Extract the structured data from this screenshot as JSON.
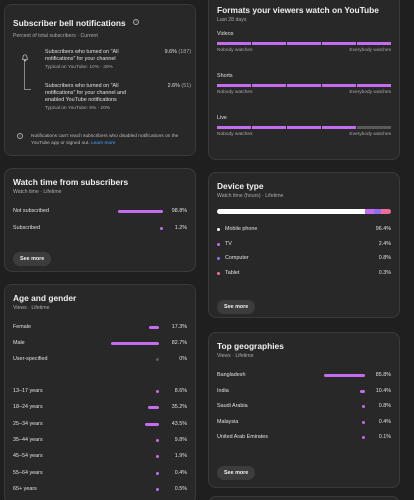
{
  "bell": {
    "title": "Subscriber bell notifications",
    "subtitle": "Percent of total subscribers · Current",
    "rows": [
      {
        "label": "Subscribers who turned on \"All notifications\" for your channel",
        "pct": "9.6%",
        "count": "(187)",
        "typical": "Typical on YouTube: 10% - 30%"
      },
      {
        "label": "Subscribers who turned on \"All notifications\" for your channel and enabled YouTube notifications",
        "pct": "2.6%",
        "count": "(51)",
        "typical": "Typical on YouTube: 5% - 20%"
      }
    ],
    "note": "Notifications can't reach subscribers who disabled notifications on the YouTube app or signed out.",
    "learn_more": "Learn more"
  },
  "formats": {
    "title": "Formats your viewers watch on YouTube",
    "subtitle": "Last 28 days",
    "legend_left": "Nobody watches",
    "legend_right": "Everybody watches",
    "items": [
      {
        "label": "Videos",
        "filled": 5,
        "total": 5
      },
      {
        "label": "Shorts",
        "filled": 5,
        "total": 5
      },
      {
        "label": "Live",
        "filled": 4,
        "total": 5
      }
    ]
  },
  "watch": {
    "title": "Watch time from subscribers",
    "subtitle": "Watch time · Lifetime",
    "rows": [
      {
        "label": "Not subscribed",
        "value": "98.8%",
        "pct": 98.8
      },
      {
        "label": "Subscribed",
        "value": "1.2%",
        "pct": 1.2
      }
    ],
    "see_more": "See more"
  },
  "device": {
    "title": "Device type",
    "subtitle": "Watch time (hours) · Lifetime",
    "items": [
      {
        "label": "Mobile phone",
        "value": "96.4%",
        "color": "#ffffff"
      },
      {
        "label": "TV",
        "value": "2.4%",
        "color": "#c46cf0"
      },
      {
        "label": "Computer",
        "value": "0.8%",
        "color": "#8f6cf0"
      },
      {
        "label": "Tablet",
        "value": "0.3%",
        "color": "#f06c9a"
      }
    ],
    "see_more": "See more"
  },
  "age": {
    "title": "Age and gender",
    "subtitle": "Views · Lifetime",
    "gender": [
      {
        "label": "Female",
        "value": "17.3%",
        "pct": 17.3
      },
      {
        "label": "Male",
        "value": "82.7%",
        "pct": 82.7
      },
      {
        "label": "User-specified",
        "value": "0%",
        "pct": 0
      }
    ],
    "ages": [
      {
        "label": "13–17 years",
        "value": "8.6%",
        "pct": 8.6
      },
      {
        "label": "18–24 years",
        "value": "35.2%",
        "pct": 35.2
      },
      {
        "label": "25–34 years",
        "value": "43.5%",
        "pct": 43.5
      },
      {
        "label": "35–44 years",
        "value": "9.8%",
        "pct": 9.8
      },
      {
        "label": "45–54 years",
        "value": "1.9%",
        "pct": 1.9
      },
      {
        "label": "55–64 years",
        "value": "0.4%",
        "pct": 0.4
      },
      {
        "label": "65+ years",
        "value": "0.5%",
        "pct": 0.5
      }
    ]
  },
  "geo": {
    "title": "Top geographies",
    "subtitle": "Views · Lifetime",
    "rows": [
      {
        "label": "Bangladesh",
        "value": "85.8%",
        "pct": 85.8
      },
      {
        "label": "India",
        "value": "10.4%",
        "pct": 10.4
      },
      {
        "label": "Saudi Arabia",
        "value": "0.8%",
        "pct": 0.8
      },
      {
        "label": "Malaysia",
        "value": "0.4%",
        "pct": 0.4
      },
      {
        "label": "United Arab Emirates",
        "value": "0.1%",
        "pct": 0.1
      }
    ],
    "see_more": "See more"
  }
}
